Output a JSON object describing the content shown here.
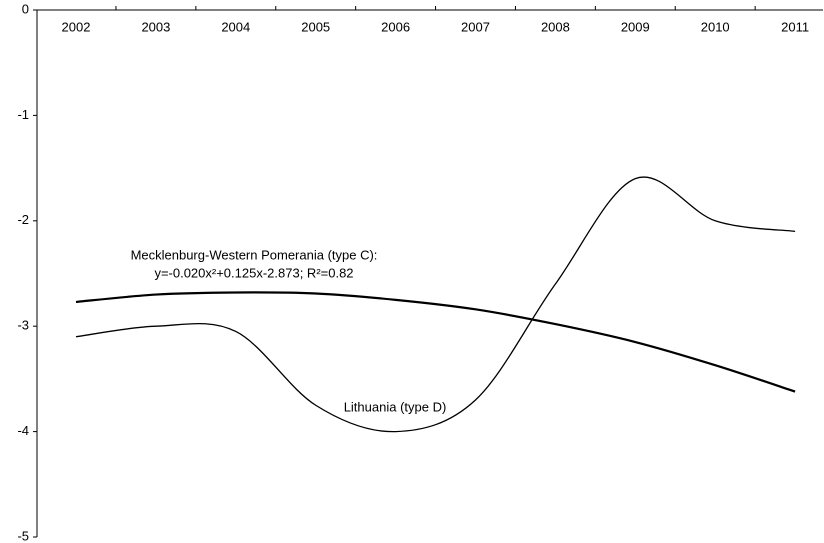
{
  "chart_data": {
    "type": "line",
    "smooth": true,
    "categories": [
      "2002",
      "2003",
      "2004",
      "2005",
      "2006",
      "2007",
      "2008",
      "2009",
      "2010",
      "2011"
    ],
    "series": [
      {
        "name": "Mecklenburg-Western Pomerania (type C):",
        "color": "#000000",
        "width": 2.2,
        "values": [
          -2.77,
          -2.7,
          -2.68,
          -2.69,
          -2.75,
          -2.84,
          -2.98,
          -3.15,
          -3.37,
          -3.62
        ]
      },
      {
        "name": "Lithuania (type D)",
        "color": "#000000",
        "width": 1.3,
        "values": [
          -3.1,
          -3.0,
          -3.05,
          -3.75,
          -4.0,
          -3.7,
          -2.6,
          -1.6,
          -2.0,
          -2.1
        ]
      }
    ],
    "annotations": [
      "y=-0.020x²+0.125x-2.873; R²=0.82"
    ],
    "ylim": [
      -5,
      0
    ],
    "yticks": [
      0,
      -1,
      -2,
      -3,
      -4,
      -5
    ],
    "grid": false
  }
}
